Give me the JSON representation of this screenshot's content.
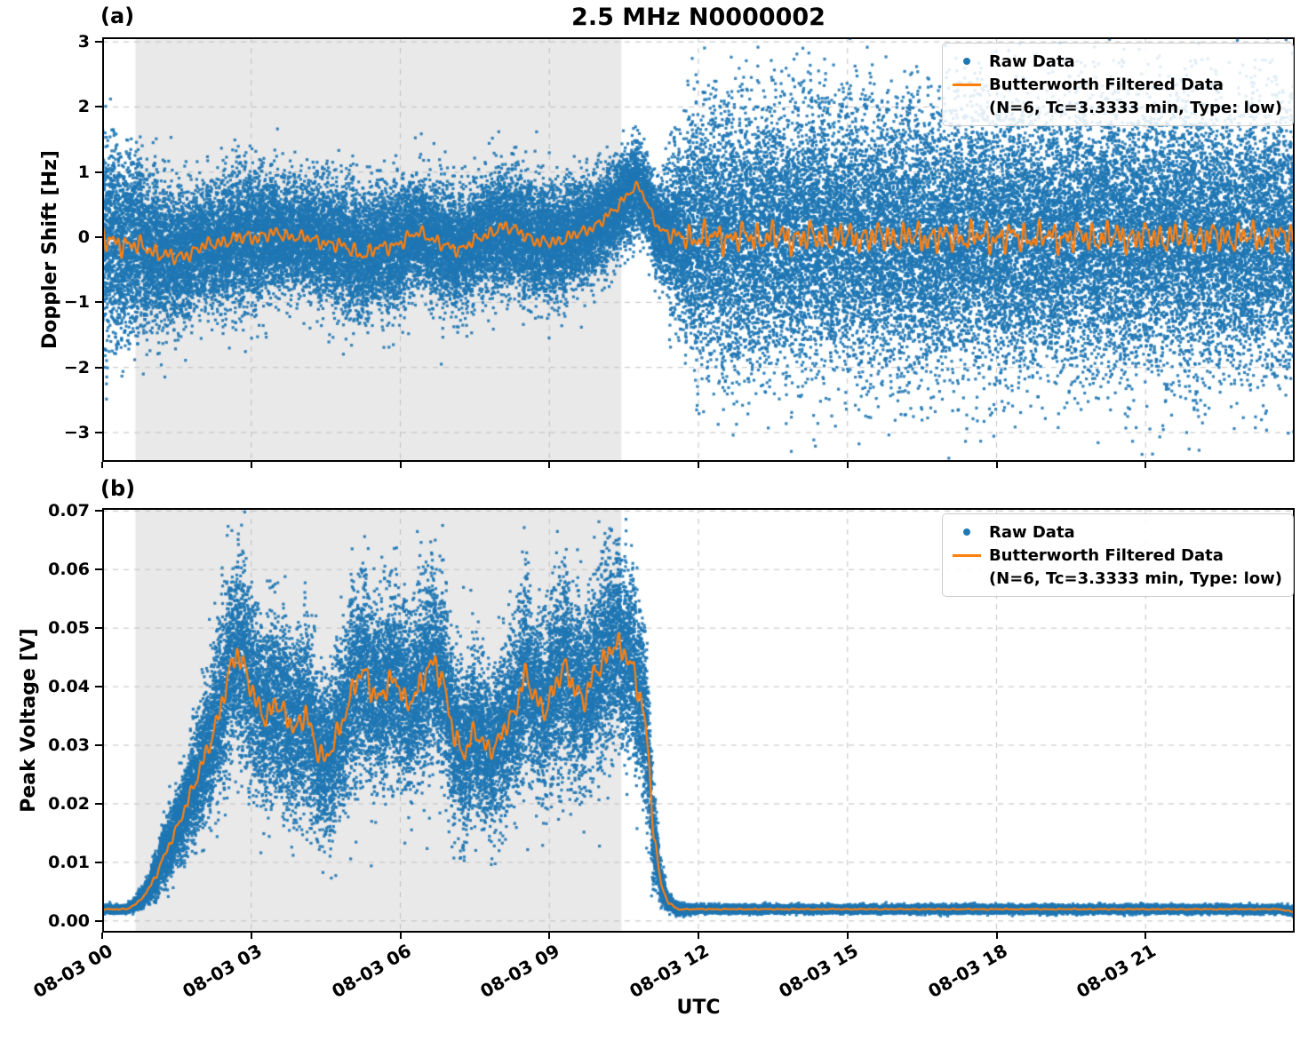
{
  "title": "2.5 MHz N0000002",
  "x_axis": {
    "label": "UTC",
    "range_hours": [
      0,
      24
    ],
    "tick_hours": [
      0,
      3,
      6,
      9,
      12,
      15,
      18,
      21
    ],
    "tick_labels": [
      "08-03 00",
      "08-03 03",
      "08-03 06",
      "08-03 09",
      "08-03 12",
      "08-03 15",
      "08-03 18",
      "08-03 21"
    ]
  },
  "legend": {
    "raw_label": "Raw Data",
    "filtered_label": "Butterworth Filtered Data",
    "filtered_sublabel": "(N=6, Tc=3.3333 min, Type: low)"
  },
  "colors": {
    "raw": "#1f77b4",
    "filtered": "#ff7f0e",
    "shade": "#e9e9e9",
    "grid": "#c0c0c0",
    "axis": "#000000",
    "background": "#ffffff"
  },
  "chart_data": [
    {
      "type": "scatter",
      "panel_label": "(a)",
      "ylabel": "Doppler Shift [Hz]",
      "ylim": [
        -3.45,
        3.07
      ],
      "ytick_values": [
        3,
        2,
        1,
        0,
        -1,
        -2,
        -3
      ],
      "ytick_labels": [
        "3",
        "2",
        "1",
        "0",
        "−1",
        "−2",
        "−3"
      ],
      "shaded_hours": [
        0.67,
        10.45
      ],
      "clamp_min": null,
      "raw_series": {
        "name": "Raw Data",
        "kind": "scatter",
        "x": [
          0,
          0.5,
          1,
          1.5,
          2,
          2.5,
          3,
          3.5,
          4,
          4.5,
          5,
          5.3,
          5.6,
          6,
          6.4,
          6.8,
          7.2,
          7.6,
          8,
          8.4,
          8.8,
          9.2,
          9.6,
          10,
          10.3,
          10.6,
          10.8,
          11,
          11.2,
          11.5,
          11.8,
          12,
          13,
          14,
          15,
          16,
          17,
          18,
          19,
          20,
          21,
          22,
          23,
          24
        ],
        "mean": [
          -0.05,
          -0.1,
          -0.2,
          -0.33,
          -0.15,
          -0.05,
          0.0,
          0.05,
          0.0,
          -0.08,
          -0.18,
          -0.28,
          -0.15,
          -0.1,
          0.1,
          -0.12,
          -0.18,
          -0.02,
          0.15,
          0.1,
          -0.1,
          -0.05,
          0.05,
          0.22,
          0.4,
          0.7,
          0.78,
          0.45,
          0.15,
          0.0,
          0.0,
          0.0,
          0.0,
          0,
          0,
          0,
          0,
          0,
          0,
          0,
          0,
          0,
          0,
          0
        ],
        "sd": [
          0.8,
          0.7,
          0.55,
          0.5,
          0.45,
          0.48,
          0.5,
          0.45,
          0.4,
          0.45,
          0.5,
          0.48,
          0.44,
          0.5,
          0.4,
          0.44,
          0.42,
          0.4,
          0.45,
          0.42,
          0.45,
          0.42,
          0.4,
          0.38,
          0.36,
          0.34,
          0.32,
          0.3,
          0.32,
          0.55,
          0.85,
          0.95,
          0.95,
          1.0,
          0.95,
          1.0,
          0.97,
          1.0,
          0.95,
          1.0,
          0.97,
          1.0,
          0.95,
          0.97
        ]
      },
      "filtered_series": {
        "name": "Butterworth Filtered Data",
        "kind": "line",
        "wiggle_amp": 0.33
      }
    },
    {
      "type": "scatter",
      "panel_label": "(b)",
      "ylabel": "Peak Voltage [V]",
      "ylim": [
        -0.002,
        0.0705
      ],
      "ytick_values": [
        0.07,
        0.06,
        0.05,
        0.04,
        0.03,
        0.02,
        0.01,
        0.0
      ],
      "ytick_labels": [
        "0.07",
        "0.06",
        "0.05",
        "0.04",
        "0.03",
        "0.02",
        "0.01",
        "0.00"
      ],
      "shaded_hours": [
        0.67,
        10.45
      ],
      "clamp_min": 0.0004,
      "raw_series": {
        "name": "Raw Data",
        "kind": "scatter",
        "x": [
          0,
          0.5,
          0.7,
          0.9,
          1.1,
          1.3,
          1.5,
          1.7,
          1.9,
          2.1,
          2.3,
          2.5,
          2.7,
          2.9,
          3.1,
          3.3,
          3.5,
          3.7,
          3.9,
          4.1,
          4.3,
          4.5,
          4.7,
          4.9,
          5.1,
          5.3,
          5.5,
          5.7,
          5.9,
          6.1,
          6.3,
          6.5,
          6.7,
          6.9,
          7.1,
          7.3,
          7.5,
          7.7,
          7.9,
          8.1,
          8.3,
          8.5,
          8.7,
          8.9,
          9.1,
          9.3,
          9.5,
          9.7,
          9.9,
          10.1,
          10.3,
          10.5,
          10.7,
          10.9,
          11.0,
          11.1,
          11.25,
          11.4,
          11.6,
          12,
          13,
          14,
          15,
          16,
          17,
          18,
          19,
          20,
          21,
          22,
          23,
          23.7,
          24
        ],
        "mean": [
          0.002,
          0.002,
          0.003,
          0.005,
          0.008,
          0.012,
          0.016,
          0.02,
          0.024,
          0.029,
          0.034,
          0.04,
          0.046,
          0.043,
          0.037,
          0.034,
          0.038,
          0.035,
          0.032,
          0.036,
          0.03,
          0.027,
          0.031,
          0.036,
          0.041,
          0.042,
          0.038,
          0.04,
          0.041,
          0.037,
          0.039,
          0.042,
          0.044,
          0.04,
          0.031,
          0.028,
          0.033,
          0.03,
          0.029,
          0.033,
          0.036,
          0.042,
          0.038,
          0.036,
          0.04,
          0.043,
          0.04,
          0.038,
          0.042,
          0.044,
          0.048,
          0.046,
          0.042,
          0.036,
          0.028,
          0.015,
          0.006,
          0.003,
          0.002,
          0.002,
          0.002,
          0.002,
          0.002,
          0.002,
          0.002,
          0.002,
          0.002,
          0.002,
          0.002,
          0.002,
          0.002,
          0.002,
          0.0015
        ],
        "sd": [
          0.0003,
          0.0003,
          0.0005,
          0.001,
          0.0018,
          0.0025,
          0.003,
          0.0038,
          0.0045,
          0.0055,
          0.0065,
          0.0075,
          0.008,
          0.008,
          0.0075,
          0.0072,
          0.0075,
          0.0075,
          0.0072,
          0.0075,
          0.007,
          0.0065,
          0.007,
          0.0072,
          0.0078,
          0.0078,
          0.0075,
          0.0075,
          0.0078,
          0.0072,
          0.0075,
          0.0078,
          0.008,
          0.0078,
          0.0068,
          0.0062,
          0.007,
          0.0065,
          0.0062,
          0.0068,
          0.0072,
          0.0078,
          0.0072,
          0.0072,
          0.0075,
          0.0078,
          0.0075,
          0.0072,
          0.0078,
          0.008,
          0.0082,
          0.008,
          0.0078,
          0.0075,
          0.006,
          0.004,
          0.0015,
          0.0006,
          0.0004,
          0.0003,
          0.0003,
          0.0003,
          0.0003,
          0.0003,
          0.0003,
          0.0003,
          0.0003,
          0.0003,
          0.0003,
          0.0003,
          0.0003,
          0.0003,
          0.0003
        ]
      },
      "filtered_series": {
        "name": "Butterworth Filtered Data",
        "kind": "line",
        "wiggle_amp": 0.4
      }
    }
  ]
}
